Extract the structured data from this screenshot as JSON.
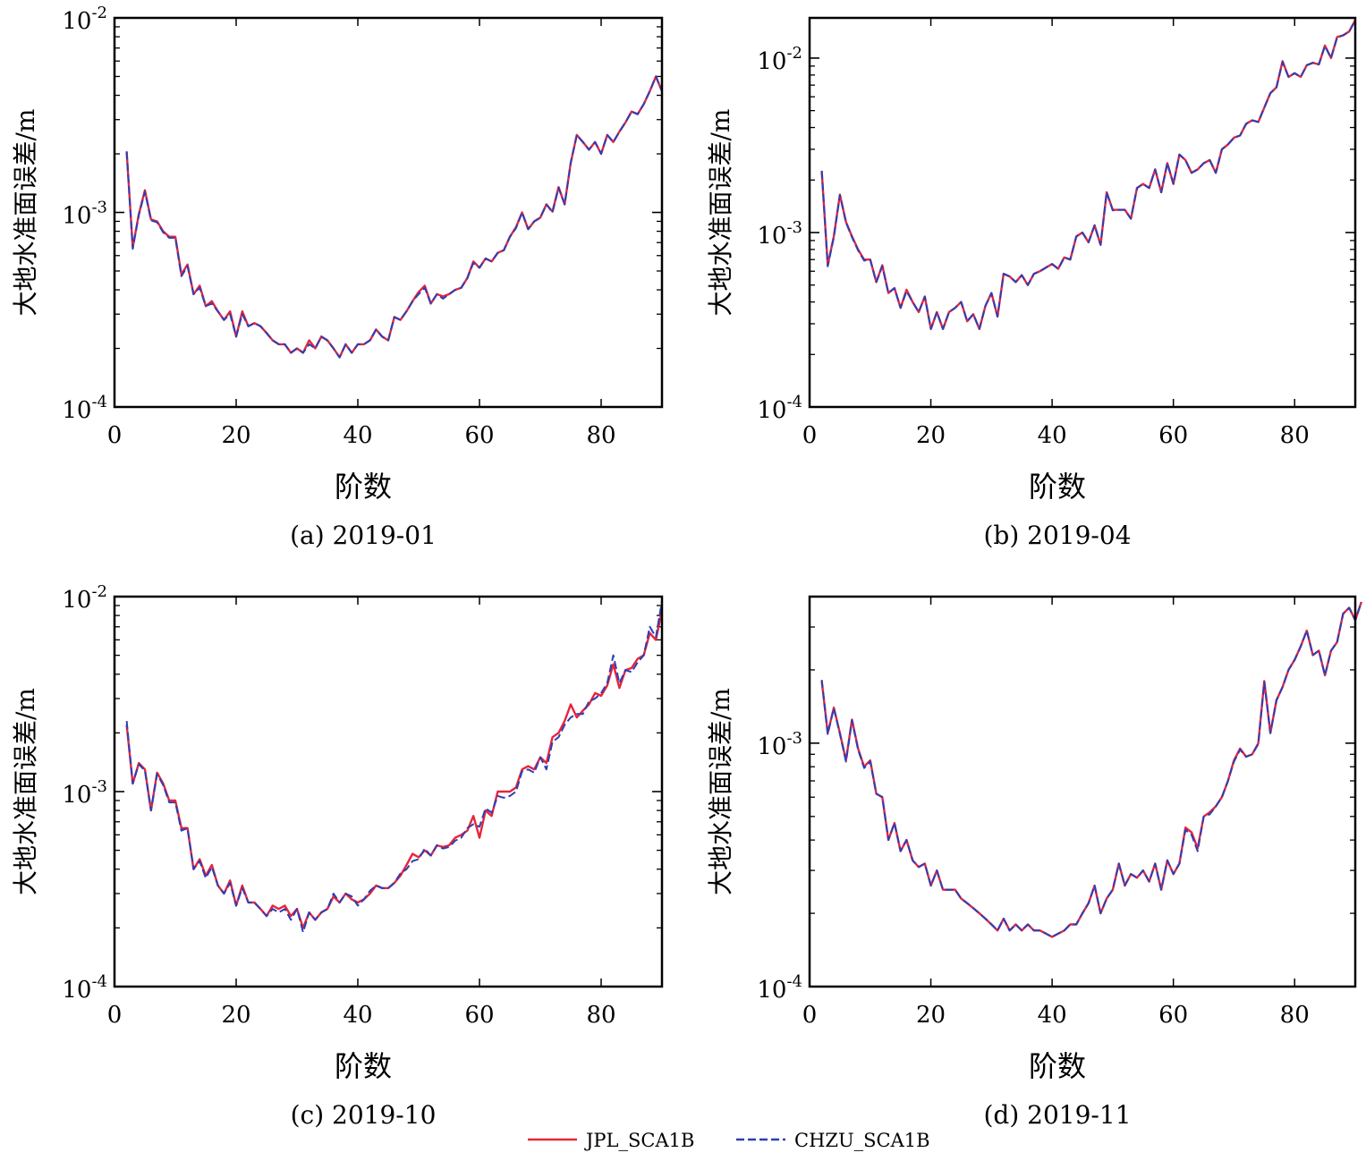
{
  "legend": {
    "series": [
      {
        "name": "JPL_SCA1B",
        "color": "#e8253a",
        "style": "solid"
      },
      {
        "name": "CHZU_SCA1B",
        "color": "#2b3fb8",
        "style": "dashed"
      }
    ]
  },
  "chart_data": [
    {
      "type": "line",
      "caption": "(a) 2019-01",
      "xlabel": "阶数",
      "ylabel": "大地水准面误差/m",
      "xlim": [
        0,
        90
      ],
      "ylim": [
        0.0001,
        0.01
      ],
      "yscale": "log",
      "xticks": [
        0,
        20,
        40,
        60,
        80
      ],
      "yticks": [
        {
          "base": "10",
          "exp": "-4"
        },
        {
          "base": "10",
          "exp": "-3"
        },
        {
          "base": "10",
          "exp": "-2"
        }
      ],
      "x_start": 2,
      "series": [
        {
          "name": "JPL_SCA1B",
          "values": [
            0.00205,
            0.00066,
            0.00098,
            0.0013,
            0.00092,
            0.0009,
            0.0008,
            0.00075,
            0.00075,
            0.00048,
            0.00054,
            0.00038,
            0.00042,
            0.00033,
            0.00035,
            0.00031,
            0.00028,
            0.00031,
            0.00023,
            0.00031,
            0.00026,
            0.00027,
            0.00026,
            0.00024,
            0.00022,
            0.00021,
            0.00021,
            0.00019,
            0.0002,
            0.00019,
            0.00022,
            0.0002,
            0.00023,
            0.00022,
            0.0002,
            0.00018,
            0.00021,
            0.00019,
            0.00021,
            0.00021,
            0.00022,
            0.00025,
            0.00023,
            0.00022,
            0.00029,
            0.00028,
            0.00031,
            0.00035,
            0.00039,
            0.00042,
            0.00034,
            0.00038,
            0.00037,
            0.00038,
            0.0004,
            0.00041,
            0.00046,
            0.00056,
            0.00052,
            0.00058,
            0.00056,
            0.00062,
            0.00064,
            0.00075,
            0.00084,
            0.001,
            0.00082,
            0.0009,
            0.00094,
            0.0011,
            0.00101,
            0.00135,
            0.0011,
            0.0018,
            0.0025,
            0.0023,
            0.0021,
            0.0023,
            0.002,
            0.0025,
            0.0023,
            0.0026,
            0.0029,
            0.0033,
            0.0032,
            0.0036,
            0.0042,
            0.005,
            0.0042
          ]
        },
        {
          "name": "CHZU_SCA1B",
          "values": [
            0.00206,
            0.00065,
            0.00097,
            0.00128,
            0.00091,
            0.00089,
            0.00079,
            0.00074,
            0.00074,
            0.00047,
            0.00053,
            0.00038,
            0.00041,
            0.00033,
            0.00034,
            0.00031,
            0.00028,
            0.0003,
            0.00023,
            0.0003,
            0.00026,
            0.00027,
            0.00026,
            0.00024,
            0.00022,
            0.00021,
            0.00021,
            0.00019,
            0.0002,
            0.00019,
            0.00021,
            0.0002,
            0.00023,
            0.00022,
            0.0002,
            0.00018,
            0.00021,
            0.00019,
            0.00021,
            0.00021,
            0.00022,
            0.00025,
            0.00023,
            0.00022,
            0.00029,
            0.00028,
            0.00031,
            0.00035,
            0.00038,
            0.00041,
            0.00034,
            0.00038,
            0.00036,
            0.00038,
            0.0004,
            0.00041,
            0.00046,
            0.00055,
            0.00052,
            0.00058,
            0.00056,
            0.00062,
            0.00064,
            0.00075,
            0.00083,
            0.001,
            0.00082,
            0.0009,
            0.00094,
            0.0011,
            0.001,
            0.00134,
            0.0011,
            0.0018,
            0.0025,
            0.0023,
            0.0021,
            0.0023,
            0.002,
            0.0025,
            0.0023,
            0.0026,
            0.0029,
            0.0033,
            0.0032,
            0.0036,
            0.0042,
            0.005,
            0.0042
          ]
        }
      ]
    },
    {
      "type": "line",
      "caption": "(b) 2019-04",
      "xlabel": "阶数",
      "ylabel": "大地水准面误差/m",
      "xlim": [
        0,
        90
      ],
      "ylim": [
        0.0001,
        0.017
      ],
      "yscale": "log",
      "xticks": [
        0,
        20,
        40,
        60,
        80
      ],
      "yticks": [
        {
          "base": "10",
          "exp": "-4"
        },
        {
          "base": "10",
          "exp": "-3"
        },
        {
          "base": "10",
          "exp": "-2"
        }
      ],
      "x_start": 2,
      "series": [
        {
          "name": "JPL_SCA1B",
          "values": [
            0.00225,
            0.00065,
            0.00095,
            0.00165,
            0.00115,
            0.00095,
            0.0008,
            0.0007,
            0.0007,
            0.00052,
            0.00065,
            0.00045,
            0.00048,
            0.00037,
            0.00047,
            0.0004,
            0.00035,
            0.00043,
            0.00028,
            0.00035,
            0.00028,
            0.00035,
            0.00037,
            0.0004,
            0.00031,
            0.00034,
            0.00028,
            0.00038,
            0.00045,
            0.00033,
            0.00058,
            0.00056,
            0.00052,
            0.00057,
            0.0005,
            0.00058,
            0.0006,
            0.00063,
            0.00066,
            0.00062,
            0.00072,
            0.0007,
            0.00095,
            0.001,
            0.00088,
            0.0011,
            0.00085,
            0.0017,
            0.00135,
            0.00135,
            0.00135,
            0.0012,
            0.0018,
            0.0019,
            0.0018,
            0.0023,
            0.0017,
            0.0025,
            0.0019,
            0.0028,
            0.0026,
            0.0022,
            0.0023,
            0.0025,
            0.0026,
            0.0022,
            0.003,
            0.0032,
            0.0035,
            0.0036,
            0.0042,
            0.0044,
            0.0043,
            0.0052,
            0.0063,
            0.0068,
            0.0096,
            0.0078,
            0.0082,
            0.0078,
            0.0091,
            0.0094,
            0.0092,
            0.0118,
            0.01,
            0.0132,
            0.0135,
            0.0142,
            0.0165
          ]
        },
        {
          "name": "CHZU_SCA1B",
          "values": [
            0.00226,
            0.00064,
            0.00094,
            0.00164,
            0.00114,
            0.00094,
            0.00079,
            0.00069,
            0.0007,
            0.00052,
            0.00064,
            0.00045,
            0.00048,
            0.00037,
            0.00046,
            0.0004,
            0.00035,
            0.00043,
            0.00028,
            0.00035,
            0.00028,
            0.00035,
            0.00037,
            0.0004,
            0.00031,
            0.00034,
            0.00028,
            0.00038,
            0.00045,
            0.00033,
            0.00058,
            0.00056,
            0.00052,
            0.00057,
            0.0005,
            0.00058,
            0.0006,
            0.00063,
            0.00066,
            0.00062,
            0.00072,
            0.0007,
            0.00095,
            0.001,
            0.00088,
            0.0011,
            0.00085,
            0.0017,
            0.00134,
            0.00135,
            0.00135,
            0.0012,
            0.0018,
            0.0019,
            0.0018,
            0.0023,
            0.0017,
            0.0025,
            0.0019,
            0.0028,
            0.0026,
            0.0022,
            0.0023,
            0.0025,
            0.0026,
            0.0022,
            0.003,
            0.0032,
            0.0035,
            0.0036,
            0.0042,
            0.0044,
            0.0043,
            0.0052,
            0.0063,
            0.0068,
            0.0095,
            0.0078,
            0.0082,
            0.0078,
            0.0091,
            0.0094,
            0.0092,
            0.0117,
            0.01,
            0.0131,
            0.0135,
            0.0142,
            0.0164
          ]
        }
      ]
    },
    {
      "type": "line",
      "caption": "(c) 2019-10",
      "xlabel": "阶数",
      "ylabel": "大地水准面误差/m",
      "xlim": [
        0,
        90
      ],
      "ylim": [
        0.0001,
        0.01
      ],
      "yscale": "log",
      "xticks": [
        0,
        20,
        40,
        60,
        80
      ],
      "yticks": [
        {
          "base": "10",
          "exp": "-4"
        },
        {
          "base": "10",
          "exp": "-3"
        },
        {
          "base": "10",
          "exp": "-2"
        }
      ],
      "x_start": 2,
      "series": [
        {
          "name": "JPL_SCA1B",
          "values": [
            0.0022,
            0.0011,
            0.0014,
            0.0013,
            0.0008,
            0.00125,
            0.0011,
            0.0009,
            0.0009,
            0.00065,
            0.00065,
            0.0004,
            0.00045,
            0.00037,
            0.00042,
            0.00033,
            0.0003,
            0.00035,
            0.00026,
            0.00033,
            0.00027,
            0.00027,
            0.00025,
            0.00023,
            0.00026,
            0.00025,
            0.00026,
            0.00023,
            0.00025,
            0.0002,
            0.00024,
            0.00022,
            0.00024,
            0.00025,
            0.00029,
            0.00027,
            0.0003,
            0.00028,
            0.00027,
            0.00028,
            0.0003,
            0.00033,
            0.00032,
            0.00032,
            0.00034,
            0.00037,
            0.00042,
            0.00048,
            0.00046,
            0.0005,
            0.00047,
            0.00053,
            0.00052,
            0.00053,
            0.00058,
            0.0006,
            0.00063,
            0.00075,
            0.00058,
            0.0008,
            0.00075,
            0.001,
            0.001,
            0.001,
            0.00105,
            0.0013,
            0.00135,
            0.0013,
            0.0015,
            0.0014,
            0.0019,
            0.002,
            0.0023,
            0.0028,
            0.0024,
            0.0026,
            0.0028,
            0.0032,
            0.0031,
            0.0035,
            0.0045,
            0.0034,
            0.0042,
            0.0043,
            0.0048,
            0.005,
            0.0065,
            0.006,
            0.0085
          ]
        },
        {
          "name": "CHZU_SCA1B",
          "values": [
            0.0023,
            0.0011,
            0.00138,
            0.00128,
            0.0008,
            0.00123,
            0.00108,
            0.00088,
            0.00088,
            0.00063,
            0.00065,
            0.0004,
            0.00044,
            0.00036,
            0.00041,
            0.00033,
            0.0003,
            0.00034,
            0.00026,
            0.00032,
            0.00027,
            0.00027,
            0.00025,
            0.00023,
            0.00025,
            0.00024,
            0.00025,
            0.00022,
            0.00025,
            0.00019,
            0.00024,
            0.00022,
            0.00024,
            0.00025,
            0.0003,
            0.00027,
            0.0003,
            0.00029,
            0.00026,
            0.00028,
            0.00031,
            0.00033,
            0.00032,
            0.00032,
            0.00034,
            0.00038,
            0.0004,
            0.00044,
            0.00045,
            0.00051,
            0.00047,
            0.00053,
            0.00051,
            0.00052,
            0.00056,
            0.00058,
            0.00065,
            0.00068,
            0.00066,
            0.00082,
            0.00078,
            0.00095,
            0.00093,
            0.00095,
            0.001,
            0.00127,
            0.0013,
            0.00125,
            0.0015,
            0.0013,
            0.0018,
            0.0019,
            0.0022,
            0.0024,
            0.0025,
            0.0025,
            0.0029,
            0.003,
            0.0032,
            0.0036,
            0.005,
            0.0036,
            0.0042,
            0.0041,
            0.0046,
            0.005,
            0.007,
            0.0062,
            0.0095
          ]
        }
      ]
    },
    {
      "type": "line",
      "caption": "(d) 2019-11",
      "xlabel": "阶数",
      "ylabel": "大地水准面误差/m",
      "xlim": [
        0,
        90
      ],
      "ylim": [
        0.0001,
        0.004
      ],
      "yscale": "log",
      "xticks": [
        0,
        20,
        40,
        60,
        80
      ],
      "yticks": [
        {
          "base": "10",
          "exp": "-4"
        },
        {
          "base": "10",
          "exp": "-3"
        }
      ],
      "x_start": 2,
      "series": [
        {
          "name": "JPL_SCA1B",
          "values": [
            0.0018,
            0.0011,
            0.0014,
            0.0011,
            0.00085,
            0.00125,
            0.00095,
            0.0008,
            0.00085,
            0.00062,
            0.0006,
            0.0004,
            0.00047,
            0.00036,
            0.0004,
            0.00033,
            0.00031,
            0.00032,
            0.00026,
            0.0003,
            0.00025,
            0.00025,
            0.00025,
            0.00023,
            0.00022,
            0.00021,
            0.0002,
            0.00019,
            0.00018,
            0.00017,
            0.00019,
            0.00017,
            0.00018,
            0.00017,
            0.00018,
            0.00017,
            0.00017,
            0.000165,
            0.00016,
            0.000165,
            0.00017,
            0.00018,
            0.00018,
            0.0002,
            0.00022,
            0.00026,
            0.0002,
            0.00023,
            0.00025,
            0.00032,
            0.00026,
            0.00029,
            0.00028,
            0.0003,
            0.00027,
            0.00032,
            0.00025,
            0.00033,
            0.00029,
            0.00032,
            0.00045,
            0.00043,
            0.00037,
            0.0005,
            0.00052,
            0.00055,
            0.0006,
            0.0007,
            0.00085,
            0.00095,
            0.00088,
            0.0009,
            0.001,
            0.0018,
            0.0011,
            0.0015,
            0.0017,
            0.002,
            0.0022,
            0.0025,
            0.0029,
            0.0023,
            0.0024,
            0.0019,
            0.0024,
            0.0026,
            0.0034,
            0.0036,
            0.0032,
            0.0038
          ]
        },
        {
          "name": "CHZU_SCA1B",
          "values": [
            0.00182,
            0.00109,
            0.00139,
            0.00109,
            0.00084,
            0.00124,
            0.00094,
            0.00079,
            0.00084,
            0.00062,
            0.0006,
            0.0004,
            0.00047,
            0.00036,
            0.0004,
            0.00033,
            0.00031,
            0.00032,
            0.00026,
            0.0003,
            0.00025,
            0.00025,
            0.00025,
            0.00023,
            0.00022,
            0.00021,
            0.0002,
            0.00019,
            0.00018,
            0.00017,
            0.00019,
            0.00017,
            0.00018,
            0.00017,
            0.00018,
            0.00017,
            0.00017,
            0.000165,
            0.00016,
            0.000165,
            0.00017,
            0.00018,
            0.00018,
            0.0002,
            0.00022,
            0.00026,
            0.0002,
            0.00023,
            0.00025,
            0.00032,
            0.00026,
            0.00029,
            0.00028,
            0.0003,
            0.00027,
            0.00032,
            0.00025,
            0.00033,
            0.00029,
            0.00032,
            0.00044,
            0.00042,
            0.00036,
            0.0005,
            0.00051,
            0.00055,
            0.0006,
            0.0007,
            0.00084,
            0.00094,
            0.00088,
            0.0009,
            0.00099,
            0.00178,
            0.0011,
            0.0015,
            0.0017,
            0.002,
            0.0022,
            0.0025,
            0.0029,
            0.0023,
            0.0024,
            0.0019,
            0.0024,
            0.0026,
            0.0034,
            0.0036,
            0.0032,
            0.0038
          ]
        }
      ]
    }
  ]
}
